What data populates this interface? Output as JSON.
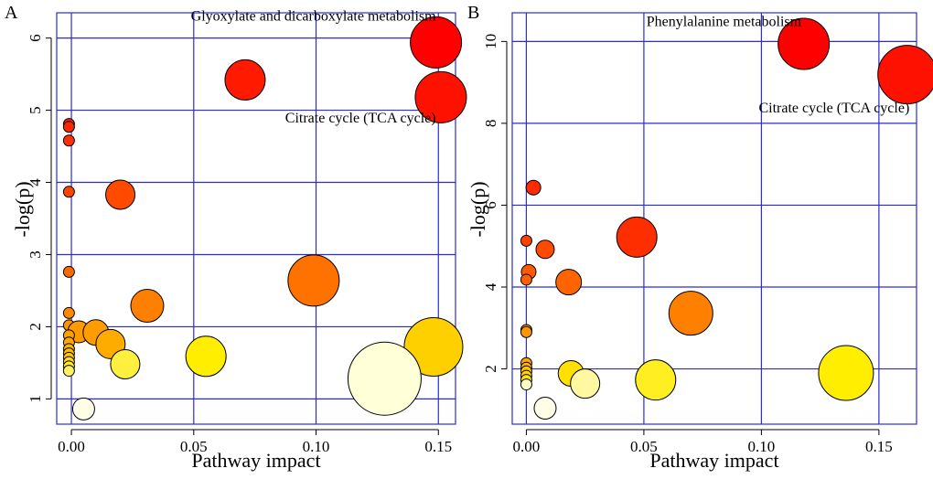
{
  "chart_data": [
    {
      "type": "scatter",
      "panel_label": "A",
      "xlabel": "Pathway impact",
      "ylabel": "-log(p)",
      "xticks": [
        0.0,
        0.05,
        0.1,
        0.15
      ],
      "xtick_labels": [
        "0.00",
        "0.05",
        "0.10",
        "0.15"
      ],
      "yticks": [
        1,
        2,
        3,
        4,
        5,
        6
      ],
      "ytick_labels": [
        "1",
        "2",
        "3",
        "4",
        "5",
        "6"
      ],
      "xlim": [
        -0.006,
        0.157
      ],
      "ylim": [
        0.65,
        6.35
      ],
      "grid": true,
      "annotations": [
        {
          "text": "Glyoxylate and dicarboxylate metabolism",
          "x": 0.149,
          "y": 6.24
        },
        {
          "text": "Citrate cycle (TCA cycle)",
          "x": 0.149,
          "y": 4.83
        }
      ],
      "points": [
        {
          "x": 0.149,
          "y": 5.94,
          "size": 14,
          "color": "#ff0000"
        },
        {
          "x": 0.151,
          "y": 5.18,
          "size": 14,
          "color": "#ff1100"
        },
        {
          "x": 0.071,
          "y": 5.42,
          "size": 11,
          "color": "#ff1a00"
        },
        {
          "x": -0.001,
          "y": 4.81,
          "size": 3,
          "color": "#ff2200"
        },
        {
          "x": -0.001,
          "y": 4.77,
          "size": 3,
          "color": "#ff2600"
        },
        {
          "x": -0.001,
          "y": 4.58,
          "size": 3,
          "color": "#ff3000"
        },
        {
          "x": -0.001,
          "y": 3.87,
          "size": 3,
          "color": "#ff4400"
        },
        {
          "x": 0.02,
          "y": 3.83,
          "size": 8,
          "color": "#ff4a00"
        },
        {
          "x": -0.001,
          "y": 2.76,
          "size": 3,
          "color": "#ff6a00"
        },
        {
          "x": 0.099,
          "y": 2.64,
          "size": 14,
          "color": "#ff7200"
        },
        {
          "x": 0.031,
          "y": 2.29,
          "size": 9,
          "color": "#ff8000"
        },
        {
          "x": -0.001,
          "y": 2.19,
          "size": 3,
          "color": "#ff8800"
        },
        {
          "x": -0.001,
          "y": 2.02,
          "size": 3,
          "color": "#ff9400"
        },
        {
          "x": 0.003,
          "y": 1.93,
          "size": 6,
          "color": "#ff9a00"
        },
        {
          "x": 0.01,
          "y": 1.92,
          "size": 7,
          "color": "#ff9c00"
        },
        {
          "x": -0.001,
          "y": 1.88,
          "size": 3,
          "color": "#ffa000"
        },
        {
          "x": -0.001,
          "y": 1.78,
          "size": 3,
          "color": "#ffa800"
        },
        {
          "x": 0.016,
          "y": 1.76,
          "size": 8,
          "color": "#ffac00"
        },
        {
          "x": -0.001,
          "y": 1.69,
          "size": 3,
          "color": "#ffb400"
        },
        {
          "x": -0.001,
          "y": 1.63,
          "size": 3,
          "color": "#ffbc00"
        },
        {
          "x": -0.001,
          "y": 1.57,
          "size": 3,
          "color": "#ffc600"
        },
        {
          "x": 0.148,
          "y": 1.72,
          "size": 16,
          "color": "#ffd000"
        },
        {
          "x": -0.001,
          "y": 1.51,
          "size": 3,
          "color": "#ffdc10"
        },
        {
          "x": -0.001,
          "y": 1.45,
          "size": 3,
          "color": "#ffe830"
        },
        {
          "x": -0.001,
          "y": 1.39,
          "size": 3,
          "color": "#fff060"
        },
        {
          "x": 0.055,
          "y": 1.59,
          "size": 11,
          "color": "#ffee00"
        },
        {
          "x": 0.022,
          "y": 1.48,
          "size": 8,
          "color": "#fff040"
        },
        {
          "x": 0.128,
          "y": 1.28,
          "size": 20,
          "color": "#ffffd8"
        },
        {
          "x": 0.005,
          "y": 0.86,
          "size": 6,
          "color": "#ffffe8"
        }
      ]
    },
    {
      "type": "scatter",
      "panel_label": "B",
      "xlabel": "Pathway impact",
      "ylabel": "-log(p)",
      "xticks": [
        0.0,
        0.05,
        0.1,
        0.15
      ],
      "xtick_labels": [
        "0.00",
        "0.05",
        "0.10",
        "0.15"
      ],
      "yticks": [
        2,
        4,
        6,
        8,
        10
      ],
      "ytick_labels": [
        "2",
        "4",
        "6",
        "8",
        "10"
      ],
      "xlim": [
        -0.006,
        0.166
      ],
      "ylim": [
        0.65,
        10.7
      ],
      "grid": true,
      "annotations": [
        {
          "text": "Phenylalanine metabolism",
          "x": 0.117,
          "y": 10.38
        },
        {
          "text": "Citrate cycle (TCA cycle)",
          "x": 0.163,
          "y": 8.27
        }
      ],
      "points": [
        {
          "x": 0.118,
          "y": 9.94,
          "size": 14,
          "color": "#ff0000"
        },
        {
          "x": 0.162,
          "y": 9.19,
          "size": 16,
          "color": "#ff1100"
        },
        {
          "x": 0.003,
          "y": 6.43,
          "size": 4,
          "color": "#ff2a00"
        },
        {
          "x": 0.047,
          "y": 5.22,
          "size": 11,
          "color": "#ff2e00"
        },
        {
          "x": 0.0,
          "y": 5.13,
          "size": 3,
          "color": "#ff4000"
        },
        {
          "x": 0.008,
          "y": 4.92,
          "size": 5,
          "color": "#ff4a00"
        },
        {
          "x": 0.001,
          "y": 4.37,
          "size": 4,
          "color": "#ff5a00"
        },
        {
          "x": 0.0,
          "y": 4.18,
          "size": 3,
          "color": "#ff6000"
        },
        {
          "x": 0.018,
          "y": 4.12,
          "size": 7,
          "color": "#ff6400"
        },
        {
          "x": 0.07,
          "y": 3.36,
          "size": 12,
          "color": "#ff7f00"
        },
        {
          "x": 0.0,
          "y": 2.95,
          "size": 3,
          "color": "#ff9200"
        },
        {
          "x": 0.0,
          "y": 2.9,
          "size": 3,
          "color": "#ff9600"
        },
        {
          "x": 0.0,
          "y": 2.14,
          "size": 3,
          "color": "#ffa600"
        },
        {
          "x": 0.0,
          "y": 2.03,
          "size": 3,
          "color": "#ffb400"
        },
        {
          "x": 0.0,
          "y": 1.94,
          "size": 3,
          "color": "#ffc400"
        },
        {
          "x": 0.0,
          "y": 1.83,
          "size": 3,
          "color": "#ffd400"
        },
        {
          "x": 0.0,
          "y": 1.73,
          "size": 3,
          "color": "#ffe400"
        },
        {
          "x": 0.019,
          "y": 1.89,
          "size": 7,
          "color": "#ffe000"
        },
        {
          "x": 0.136,
          "y": 1.9,
          "size": 15,
          "color": "#ffee00"
        },
        {
          "x": 0.055,
          "y": 1.73,
          "size": 11,
          "color": "#ffee22"
        },
        {
          "x": 0.025,
          "y": 1.64,
          "size": 8,
          "color": "#fff8a0"
        },
        {
          "x": 0.0,
          "y": 1.62,
          "size": 3,
          "color": "#ffffc8"
        },
        {
          "x": 0.008,
          "y": 1.04,
          "size": 6,
          "color": "#ffffe8"
        }
      ]
    }
  ]
}
